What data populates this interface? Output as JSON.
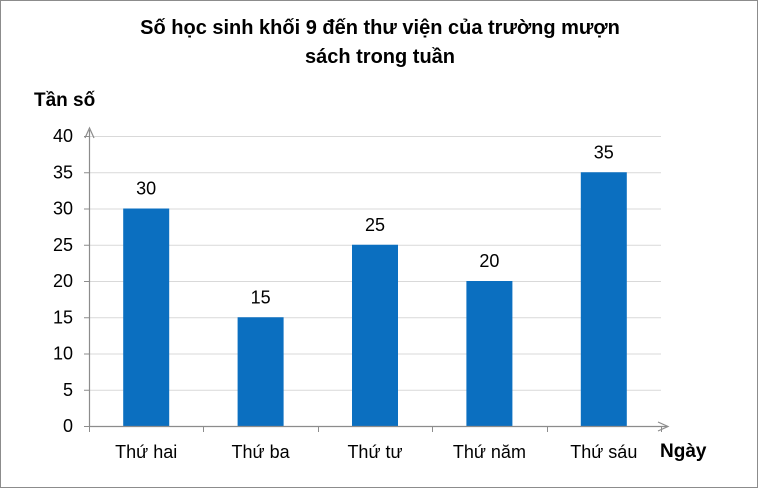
{
  "chart_data": {
    "type": "bar",
    "title_line1": "Số học sinh khối 9 đến thư viện của trường mượn",
    "title_line2": "sách trong tuần",
    "ylabel": "Tần số",
    "xlabel": "Ngày",
    "categories": [
      "Thứ hai",
      "Thứ ba",
      "Thứ tư",
      "Thứ năm",
      "Thứ sáu"
    ],
    "values": [
      30,
      15,
      25,
      20,
      35
    ],
    "ylim": [
      0,
      40
    ],
    "yticks": [
      0,
      5,
      10,
      15,
      20,
      25,
      30,
      35,
      40
    ],
    "grid": true,
    "legend": "none",
    "bar_color": "#0B6FC0"
  }
}
